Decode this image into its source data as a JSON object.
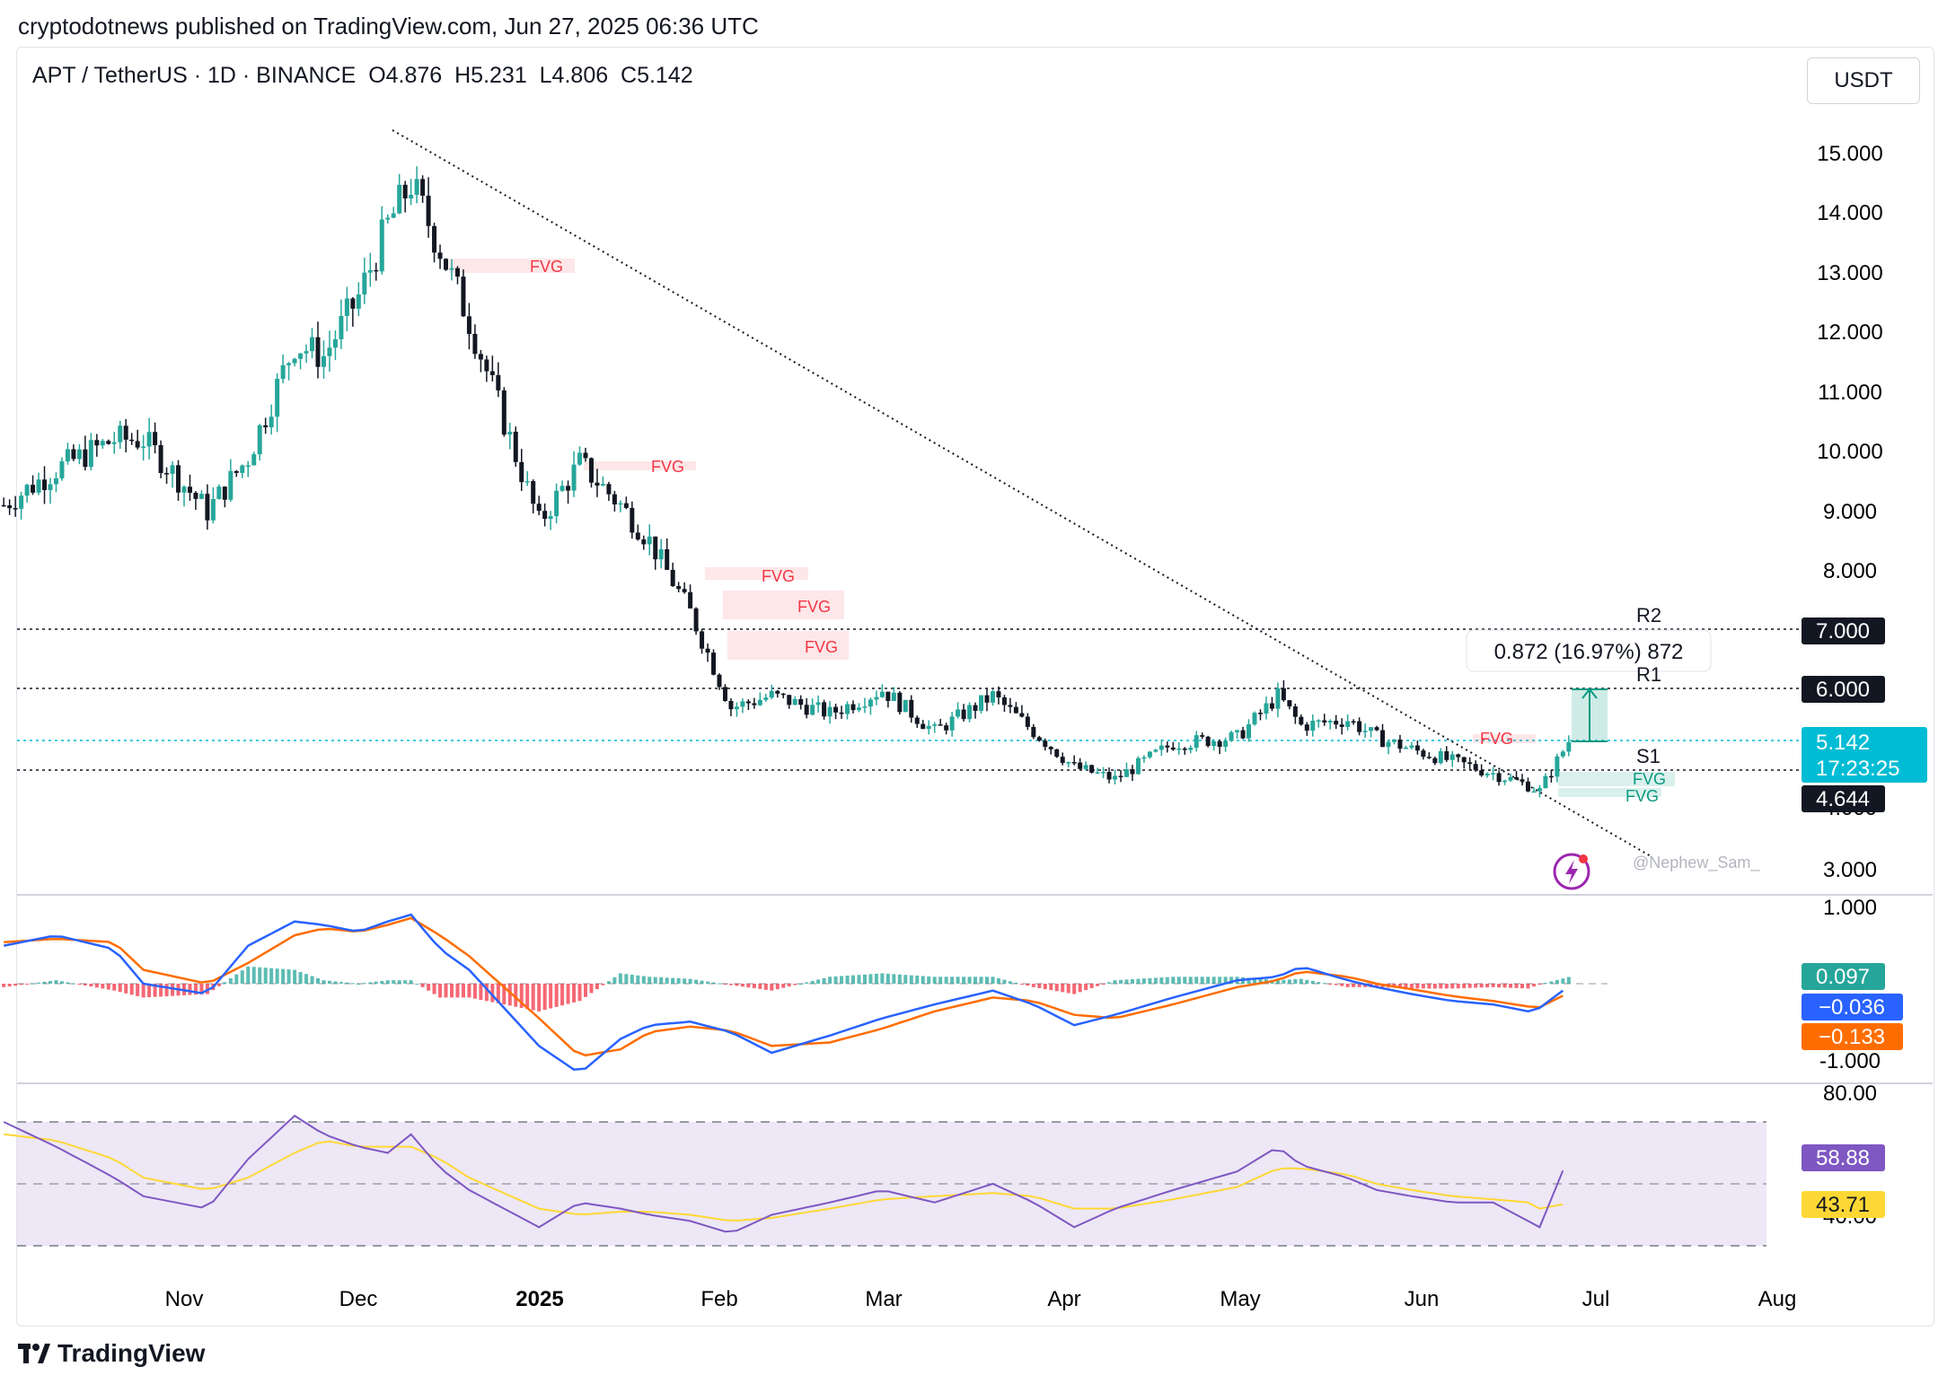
{
  "header": {
    "text": "cryptodotnews published on TradingView.com, Jun 27, 2025 06:36 UTC"
  },
  "symbol": {
    "pair": "APT / TetherUS · 1D · BINANCE",
    "open": "O4.876",
    "high": "H5.231",
    "low": "L4.806",
    "close": "C5.142"
  },
  "currency_button": "USDT",
  "footer": {
    "brand": "TradingView"
  },
  "chart_data": {
    "type": "candlestick",
    "title": "APT / TetherUS · 1D · BINANCE",
    "x_labels": [
      "Nov",
      "Dec",
      "2025",
      "Feb",
      "Mar",
      "Apr",
      "May",
      "Jun",
      "Jul",
      "Aug"
    ],
    "price_axis": [
      "15.000",
      "14.000",
      "13.000",
      "12.000",
      "11.000",
      "10.000",
      "9.000",
      "8.000",
      "7.000",
      "6.000",
      "5.142",
      "4.644",
      "4.000",
      "3.000"
    ],
    "ylim": [
      2.6,
      16.2
    ],
    "price_path_dates": [
      "2024-10-01",
      "2024-10-10",
      "2024-10-20",
      "2024-10-25",
      "2024-11-05",
      "2024-11-12",
      "2024-11-20",
      "2024-11-25",
      "2024-12-01",
      "2024-12-06",
      "2024-12-10",
      "2024-12-15",
      "2024-12-20",
      "2025-01-01",
      "2025-01-08",
      "2025-01-15",
      "2025-01-20",
      "2025-01-27",
      "2025-02-03",
      "2025-02-10",
      "2025-02-20",
      "2025-03-01",
      "2025-03-10",
      "2025-03-20",
      "2025-03-27",
      "2025-04-03",
      "2025-04-10",
      "2025-04-20",
      "2025-05-01",
      "2025-05-08",
      "2025-05-12",
      "2025-05-20",
      "2025-05-25",
      "2025-05-31",
      "2025-06-07",
      "2025-06-14",
      "2025-06-20",
      "2025-06-22",
      "2025-06-27"
    ],
    "price_path": [
      9.1,
      9.7,
      10.2,
      10.2,
      9.0,
      9.9,
      11.8,
      11.6,
      12.6,
      13.8,
      14.5,
      13.4,
      12.2,
      8.8,
      9.8,
      9.1,
      8.5,
      7.3,
      5.7,
      5.9,
      5.6,
      6.0,
      5.3,
      5.9,
      5.3,
      4.7,
      4.5,
      5.1,
      5.2,
      5.9,
      5.4,
      5.5,
      5.2,
      5.0,
      4.8,
      4.6,
      4.4,
      4.3,
      5.142
    ],
    "last_price": "5.142",
    "countdown": "17:23:25",
    "levels": [
      {
        "label": "R2",
        "value": "7.000"
      },
      {
        "label": "R1",
        "value": "6.000"
      },
      {
        "label": "S1",
        "value": "4.644"
      }
    ],
    "fvg_labels": [
      "FVG",
      "FVG",
      "FVG",
      "FVG",
      "FVG",
      "FVG",
      "FVG",
      "FVG"
    ],
    "measure_label": "0.872 (16.97%) 872",
    "watermark": "@Nephew_Sam_",
    "macd": {
      "axis": [
        "1.000",
        "-1.000"
      ],
      "values": [
        "0.097",
        "−0.036",
        "−0.133"
      ],
      "ylim": [
        -1.2,
        1.2
      ],
      "macd_path": [
        0.55,
        0.7,
        0.5,
        0.0,
        -0.15,
        0.55,
        0.9,
        0.85,
        0.75,
        0.9,
        1.0,
        0.5,
        0.2,
        -0.9,
        -1.3,
        -0.8,
        -0.6,
        -0.55,
        -0.7,
        -1.0,
        -0.75,
        -0.5,
        -0.3,
        -0.1,
        -0.3,
        -0.6,
        -0.45,
        -0.2,
        0.05,
        0.1,
        0.25,
        0.05,
        -0.05,
        -0.15,
        -0.25,
        -0.3,
        -0.4,
        -0.35,
        -0.036
      ],
      "signal_path": [
        0.6,
        0.65,
        0.6,
        0.2,
        0.0,
        0.3,
        0.7,
        0.8,
        0.75,
        0.85,
        0.95,
        0.7,
        0.4,
        -0.5,
        -1.05,
        -0.95,
        -0.7,
        -0.62,
        -0.68,
        -0.9,
        -0.85,
        -0.65,
        -0.4,
        -0.2,
        -0.25,
        -0.45,
        -0.5,
        -0.3,
        -0.05,
        0.05,
        0.18,
        0.1,
        0.0,
        -0.08,
        -0.18,
        -0.25,
        -0.33,
        -0.34,
        -0.133
      ]
    },
    "rsi": {
      "axis": [
        "80.00",
        "40.00"
      ],
      "values": [
        "58.88",
        "43.71"
      ],
      "ylim": [
        36,
        84
      ],
      "rsi_path": [
        70,
        62,
        52,
        46,
        42,
        58,
        72,
        66,
        62,
        60,
        66,
        55,
        48,
        36,
        44,
        42,
        40,
        38,
        34,
        40,
        44,
        48,
        44,
        50,
        44,
        36,
        42,
        48,
        54,
        62,
        56,
        52,
        48,
        46,
        44,
        44,
        38,
        36,
        58.88
      ],
      "ma_path": [
        66,
        64,
        58,
        52,
        48,
        52,
        60,
        64,
        62,
        62,
        62,
        58,
        52,
        42,
        40,
        41,
        41,
        40,
        38,
        39,
        42,
        45,
        46,
        47,
        46,
        42,
        42,
        45,
        49,
        55,
        55,
        53,
        50,
        48,
        46,
        45,
        44,
        42,
        43.71
      ]
    }
  },
  "colors": {
    "up": "#26a69a",
    "down": "#131722",
    "fvg_bear": "#f23645",
    "fvg_bull": "#089981",
    "last_price": "#00bcd4",
    "macd_line": "#2962ff",
    "signal_line": "#ff6d00",
    "rsi_line": "#7e57c2",
    "rsi_ma": "#fdd835",
    "rsi_band": "#ede7f6"
  }
}
